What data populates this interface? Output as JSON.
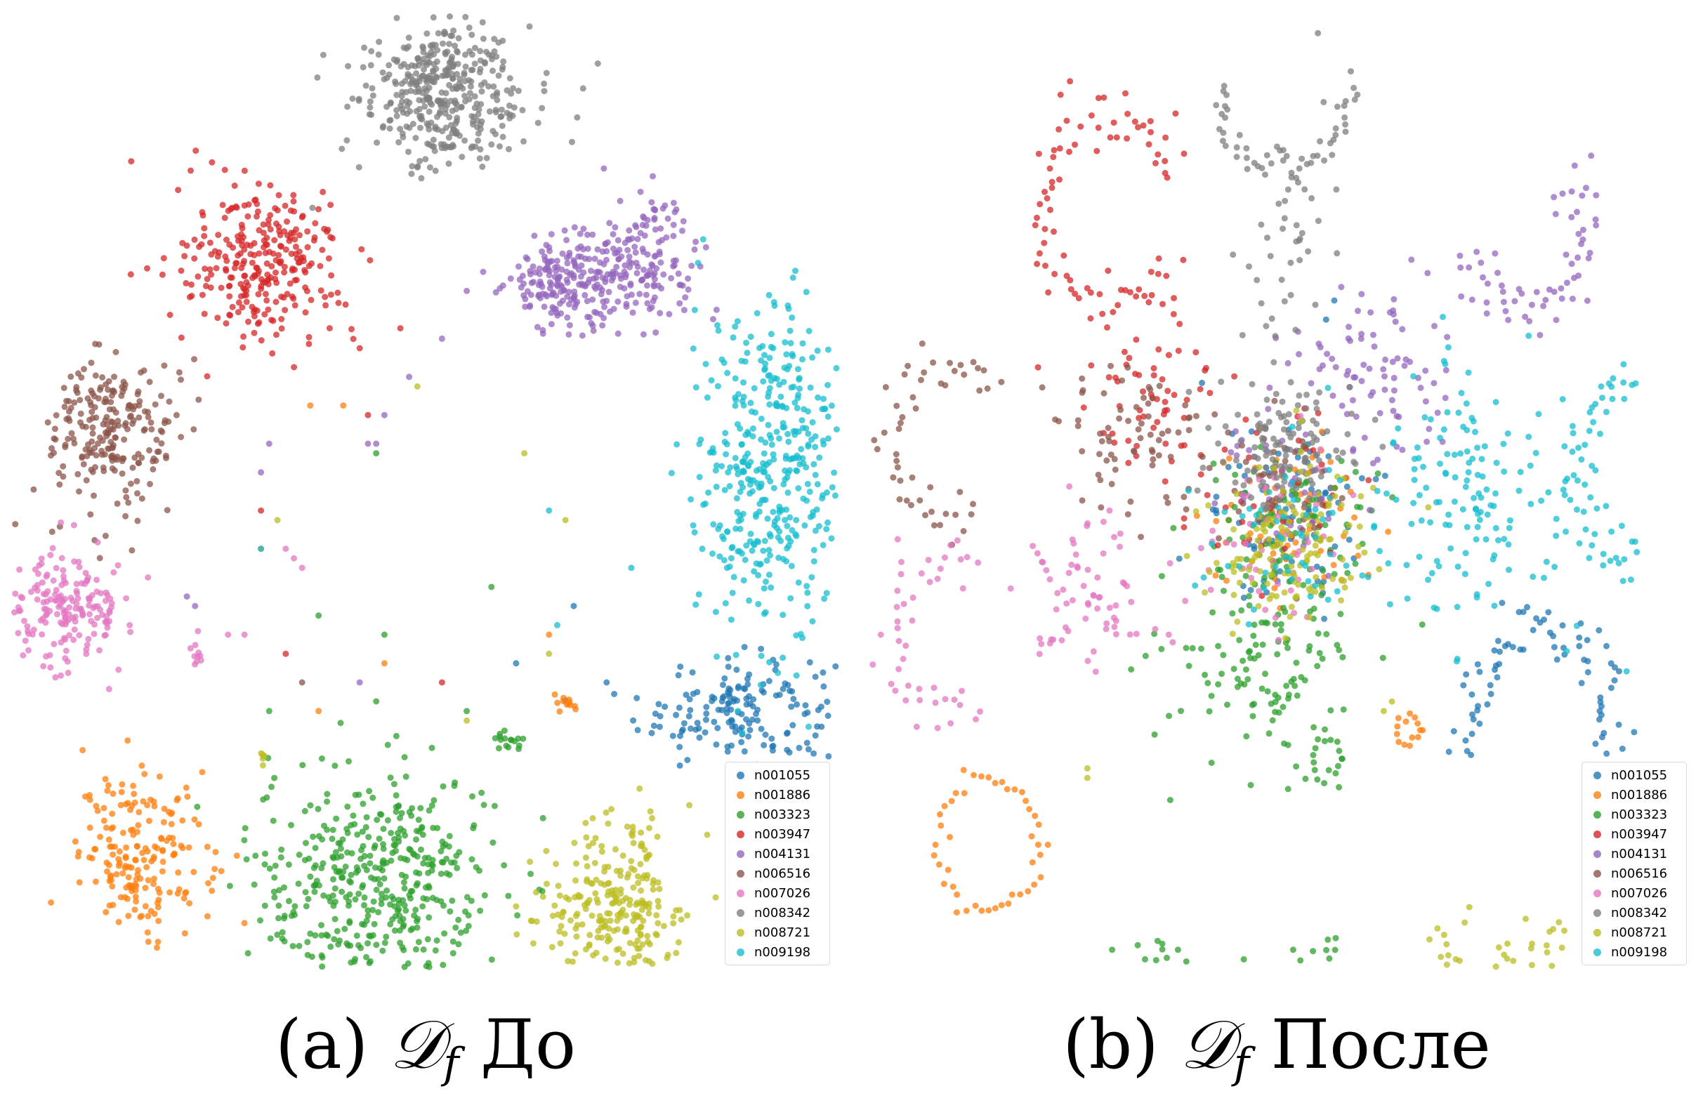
{
  "chart_data": [
    {
      "type": "scatter",
      "panel": "a",
      "caption": {
        "prefix": "(a) ",
        "math": "𝒟",
        "sub": "f",
        "suffix": " До"
      },
      "legend_placement": "bottom-right",
      "grid": false,
      "axes_visible": false,
      "series": [
        {
          "name": "n001055",
          "color": "#1f77b4",
          "clusters": [
            {
              "x": 0.88,
              "y": 0.27,
              "sx": 0.06,
              "sy": 0.03,
              "n": 170
            }
          ],
          "scatter_points": [
            [
              0.72,
              0.3
            ],
            [
              0.68,
              0.38
            ],
            [
              0.61,
              0.32
            ]
          ]
        },
        {
          "name": "n001886",
          "color": "#ff7f0e",
          "clusters": [
            {
              "x": 0.16,
              "y": 0.12,
              "sx": 0.04,
              "sy": 0.04,
              "n": 190
            },
            {
              "x": 0.67,
              "y": 0.28,
              "sx": 0.008,
              "sy": 0.006,
              "n": 12
            }
          ],
          "scatter_points": [
            [
              0.36,
              0.59
            ],
            [
              0.4,
              0.59
            ],
            [
              0.3,
              0.44
            ],
            [
              0.37,
              0.27
            ],
            [
              0.45,
              0.32
            ],
            [
              0.65,
              0.35
            ]
          ]
        },
        {
          "name": "n003323",
          "color": "#2ca02c",
          "clusters": [
            {
              "x": 0.44,
              "y": 0.09,
              "sx": 0.075,
              "sy": 0.06,
              "n": 430
            },
            {
              "x": 0.6,
              "y": 0.24,
              "sx": 0.012,
              "sy": 0.006,
              "n": 16
            }
          ],
          "scatter_points": [
            [
              0.37,
              0.37
            ],
            [
              0.45,
              0.35
            ],
            [
              0.58,
              0.4
            ],
            [
              0.55,
              0.27
            ],
            [
              0.44,
              0.54
            ],
            [
              0.31,
              0.27
            ]
          ]
        },
        {
          "name": "n003947",
          "color": "#d62728",
          "clusters": [
            {
              "x": 0.3,
              "y": 0.74,
              "sx": 0.05,
              "sy": 0.04,
              "n": 280
            }
          ],
          "scatter_points": [
            [
              0.41,
              0.67
            ],
            [
              0.42,
              0.65
            ],
            [
              0.43,
              0.58
            ],
            [
              0.3,
              0.48
            ],
            [
              0.52,
              0.3
            ],
            [
              0.33,
              0.33
            ]
          ]
        },
        {
          "name": "n004131",
          "color": "#9467bd",
          "clusters": [
            {
              "x": 0.67,
              "y": 0.72,
              "sx": 0.035,
              "sy": 0.025,
              "n": 170
            },
            {
              "x": 0.76,
              "y": 0.74,
              "sx": 0.04,
              "sy": 0.03,
              "n": 170
            }
          ],
          "scatter_points": [
            [
              0.57,
              0.73
            ],
            [
              0.55,
              0.71
            ],
            [
              0.52,
              0.66
            ],
            [
              0.48,
              0.62
            ],
            [
              0.45,
              0.58
            ],
            [
              0.43,
              0.55
            ],
            [
              0.3,
              0.52
            ],
            [
              0.31,
              0.55
            ],
            [
              0.42,
              0.3
            ],
            [
              0.44,
              0.55
            ],
            [
              0.21,
              0.39
            ],
            [
              0.22,
              0.38
            ]
          ]
        },
        {
          "name": "n006516",
          "color": "#8c564b",
          "clusters": [
            {
              "x": 0.12,
              "y": 0.56,
              "sx": 0.04,
              "sy": 0.04,
              "n": 230
            }
          ],
          "scatter_points": [
            [
              0.35,
              0.3
            ]
          ]
        },
        {
          "name": "n007026",
          "color": "#e377c2",
          "clusters": [
            {
              "x": 0.06,
              "y": 0.38,
              "sx": 0.04,
              "sy": 0.03,
              "n": 190
            },
            {
              "x": 0.22,
              "y": 0.33,
              "sx": 0.006,
              "sy": 0.01,
              "n": 10
            }
          ],
          "scatter_points": [
            [
              0.33,
              0.44
            ],
            [
              0.34,
              0.43
            ],
            [
              0.35,
              0.42
            ],
            [
              0.26,
              0.35
            ],
            [
              0.28,
              0.35
            ]
          ]
        },
        {
          "name": "n008342",
          "color": "#7f7f7f",
          "clusters": [
            {
              "x": 0.52,
              "y": 0.92,
              "sx": 0.05,
              "sy": 0.04,
              "n": 400
            }
          ],
          "scatter_points": []
        },
        {
          "name": "n008721",
          "color": "#bcbd22",
          "clusters": [
            {
              "x": 0.73,
              "y": 0.06,
              "sx": 0.045,
              "sy": 0.045,
              "n": 260
            },
            {
              "x": 0.3,
              "y": 0.22,
              "sx": 0.004,
              "sy": 0.003,
              "n": 6
            }
          ],
          "scatter_points": [
            [
              0.49,
              0.61
            ],
            [
              0.62,
              0.54
            ],
            [
              0.67,
              0.47
            ],
            [
              0.32,
              0.47
            ],
            [
              0.55,
              0.26
            ],
            [
              0.65,
              0.33
            ]
          ]
        },
        {
          "name": "n009198",
          "color": "#17becf",
          "clusters": [
            {
              "x": 0.92,
              "y": 0.53,
              "sx": 0.05,
              "sy": 0.08,
              "n": 420
            }
          ],
          "scatter_points": [
            [
              0.3,
              0.44
            ],
            [
              0.66,
              0.36
            ],
            [
              0.75,
              0.42
            ],
            [
              0.65,
              0.48
            ]
          ]
        }
      ]
    },
    {
      "type": "scatter",
      "panel": "b",
      "caption": {
        "prefix": "(b) ",
        "math": "𝒟",
        "sub": "f",
        "suffix": " После"
      },
      "legend_placement": "bottom-right",
      "grid": false,
      "axes_visible": false,
      "series": [
        {
          "name": "n001055",
          "color": "#1f77b4",
          "clusters": [
            {
              "x": 0.52,
              "y": 0.47,
              "sx": 0.05,
              "sy": 0.05,
              "n": 80
            }
          ],
          "arcs": [
            {
              "x": 0.82,
              "y": 0.26,
              "r": 0.1,
              "a0": -20,
              "a1": 200,
              "n": 75,
              "jitter": 0.015
            }
          ],
          "scatter_points": [
            [
              0.57,
              0.7
            ],
            [
              0.56,
              0.68
            ]
          ]
        },
        {
          "name": "n001886",
          "color": "#ff7f0e",
          "clusters": [
            {
              "x": 0.52,
              "y": 0.47,
              "sx": 0.05,
              "sy": 0.04,
              "n": 70
            }
          ],
          "arcs": [
            {
              "x": 0.15,
              "y": 0.13,
              "r": 0.07,
              "a0": 0,
              "a1": 360,
              "n": 45,
              "jitter": 0.008
            },
            {
              "x": 0.66,
              "y": 0.25,
              "r": 0.016,
              "a0": 0,
              "a1": 360,
              "n": 14,
              "jitter": 0.003
            }
          ],
          "scatter_points": []
        },
        {
          "name": "n003323",
          "color": "#2ca02c",
          "clusters": [
            {
              "x": 0.48,
              "y": 0.32,
              "sx": 0.06,
              "sy": 0.05,
              "n": 120
            },
            {
              "x": 0.52,
              "y": 0.46,
              "sx": 0.05,
              "sy": 0.05,
              "n": 80
            }
          ],
          "arcs": [
            {
              "x": 0.46,
              "y": 0.08,
              "r": 0.14,
              "a0": 200,
              "a1": 340,
              "n": 60,
              "jitter": 0.02
            },
            {
              "x": 0.56,
              "y": 0.22,
              "r": 0.02,
              "a0": 0,
              "a1": 360,
              "n": 16,
              "jitter": 0.003
            }
          ],
          "scatter_points": [
            [
              0.3,
              0.02
            ],
            [
              0.34,
              0.01
            ],
            [
              0.38,
              0.02
            ],
            [
              0.46,
              0.01
            ],
            [
              0.52,
              0.02
            ]
          ]
        },
        {
          "name": "n003947",
          "color": "#d62728",
          "clusters": [
            {
              "x": 0.35,
              "y": 0.6,
              "sx": 0.04,
              "sy": 0.06,
              "n": 60
            },
            {
              "x": 0.48,
              "y": 0.5,
              "sx": 0.05,
              "sy": 0.05,
              "n": 40
            }
          ],
          "arcs": [
            {
              "x": 0.3,
              "y": 0.8,
              "r": 0.1,
              "a0": 20,
              "a1": 320,
              "n": 80,
              "jitter": 0.015
            }
          ],
          "scatter_points": [
            [
              0.21,
              0.63
            ]
          ]
        },
        {
          "name": "n004131",
          "color": "#9467bd",
          "clusters": [
            {
              "x": 0.62,
              "y": 0.62,
              "sx": 0.05,
              "sy": 0.05,
              "n": 80
            },
            {
              "x": 0.52,
              "y": 0.5,
              "sx": 0.05,
              "sy": 0.05,
              "n": 40
            }
          ],
          "arcs": [
            {
              "x": 0.8,
              "y": 0.78,
              "r": 0.09,
              "a0": 200,
              "a1": 400,
              "n": 60,
              "jitter": 0.015
            }
          ],
          "scatter_points": []
        },
        {
          "name": "n006516",
          "color": "#8c564b",
          "clusters": [
            {
              "x": 0.32,
              "y": 0.55,
              "sx": 0.05,
              "sy": 0.04,
              "n": 70
            },
            {
              "x": 0.5,
              "y": 0.5,
              "sx": 0.05,
              "sy": 0.04,
              "n": 40
            }
          ],
          "arcs": [
            {
              "x": 0.1,
              "y": 0.55,
              "r": 0.08,
              "a0": 40,
              "a1": 300,
              "n": 50,
              "jitter": 0.015
            }
          ],
          "scatter_points": []
        },
        {
          "name": "n007026",
          "color": "#e377c2",
          "clusters": [
            {
              "x": 0.27,
              "y": 0.4,
              "sx": 0.05,
              "sy": 0.04,
              "n": 70
            },
            {
              "x": 0.5,
              "y": 0.45,
              "sx": 0.05,
              "sy": 0.05,
              "n": 50
            }
          ],
          "arcs": [
            {
              "x": 0.1,
              "y": 0.35,
              "r": 0.08,
              "a0": 60,
              "a1": 300,
              "n": 45,
              "jitter": 0.015
            }
          ],
          "scatter_points": []
        },
        {
          "name": "n008342",
          "color": "#7f7f7f",
          "clusters": [
            {
              "x": 0.51,
              "y": 0.54,
              "sx": 0.045,
              "sy": 0.04,
              "n": 120
            },
            {
              "x": 0.51,
              "y": 0.76,
              "sx": 0.03,
              "sy": 0.06,
              "n": 40
            }
          ],
          "arcs": [
            {
              "x": 0.51,
              "y": 0.94,
              "r": 0.1,
              "a0": 190,
              "a1": 350,
              "n": 50,
              "jitter": 0.01
            }
          ],
          "scatter_points": [
            [
              0.55,
              0.98
            ],
            [
              0.59,
              0.94
            ],
            [
              0.44,
              0.9
            ]
          ]
        },
        {
          "name": "n008721",
          "color": "#bcbd22",
          "clusters": [
            {
              "x": 0.52,
              "y": 0.44,
              "sx": 0.05,
              "sy": 0.04,
              "n": 140
            }
          ],
          "arcs": [
            {
              "x": 0.77,
              "y": 0.08,
              "r": 0.09,
              "a0": 200,
              "a1": 340,
              "n": 45,
              "jitter": 0.02
            }
          ],
          "scatter_points": [
            [
              0.63,
              0.27
            ],
            [
              0.64,
              0.28
            ],
            [
              0.27,
              0.21
            ],
            [
              0.27,
              0.2
            ]
          ]
        },
        {
          "name": "n009198",
          "color": "#17becf",
          "clusters": [
            {
              "x": 0.74,
              "y": 0.5,
              "sx": 0.07,
              "sy": 0.07,
              "n": 150
            },
            {
              "x": 0.52,
              "y": 0.46,
              "sx": 0.05,
              "sy": 0.05,
              "n": 50
            }
          ],
          "arcs": [
            {
              "x": 0.95,
              "y": 0.52,
              "r": 0.1,
              "a0": 100,
              "a1": 260,
              "n": 50,
              "jitter": 0.015
            }
          ],
          "scatter_points": []
        }
      ]
    }
  ]
}
